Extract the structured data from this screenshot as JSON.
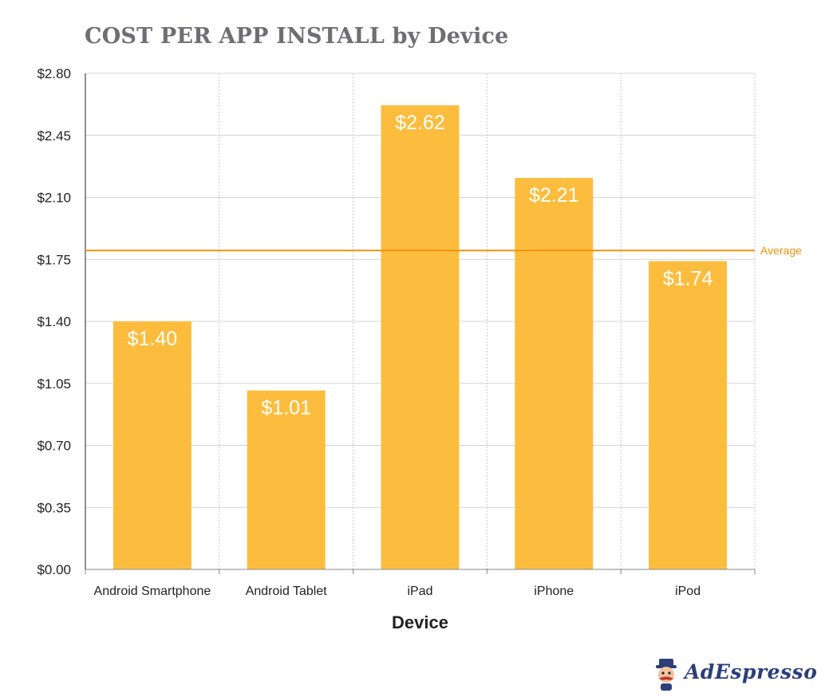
{
  "chart_data": {
    "type": "bar",
    "title": "COST PER APP INSTALL by Device",
    "xlabel": "Device",
    "ylabel": "",
    "categories": [
      "Android Smartphone",
      "Android Tablet",
      "iPad",
      "iPhone",
      "iPod"
    ],
    "values": [
      1.4,
      1.01,
      2.62,
      2.21,
      1.74
    ],
    "data_labels": [
      "$1.40",
      "$1.01",
      "$2.62",
      "$2.21",
      "$1.74"
    ],
    "ylim": [
      0,
      2.8
    ],
    "y_ticks": [
      0,
      0.35,
      0.7,
      1.05,
      1.4,
      1.75,
      2.1,
      2.45,
      2.8
    ],
    "y_tick_labels": [
      "$0.00",
      "$0.35",
      "$0.70",
      "$1.05",
      "$1.40",
      "$1.75",
      "$2.10",
      "$2.45",
      "$2.80"
    ],
    "reference_line": {
      "label": "Average",
      "value": 1.8
    },
    "grid": true,
    "colors": {
      "bar": "#fcbd3f",
      "average": "#f0930c",
      "grid": "#d4d4d4"
    }
  },
  "brand": {
    "name": "AdEspresso",
    "icon": "mascot-icon"
  }
}
